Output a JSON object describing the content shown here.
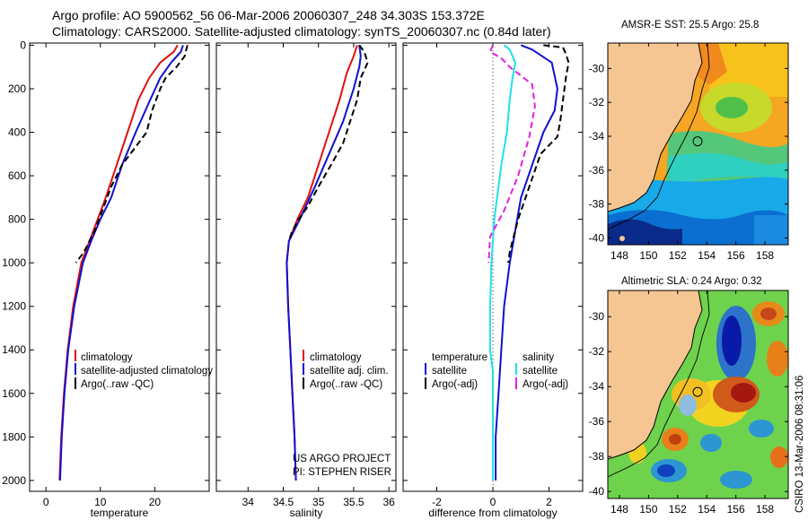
{
  "header": {
    "title_line1": "Argo profile: AO 5900562_56 06-Mar-2006 20060307_248 34.303S 153.372E",
    "title_line2": "Climatology: CARS2000. Satellite-adjusted climatology: synTS_20060307.nc (0.84d later)"
  },
  "colors": {
    "climatology": "#e01010",
    "satellite": "#1010d0",
    "argo": "#000000",
    "salinity_sat": "#20e0e8",
    "salinity_argo": "#e020e0",
    "land": "#f5c592"
  },
  "footer": {
    "project": "US ARGO PROJECT",
    "pi": "PI: STEPHEN RISER",
    "stamp": "CSIRO 13-Mar-2006 08:31:06"
  },
  "chart_data": [
    {
      "type": "line",
      "panel": "temperature",
      "xlabel": "temperature",
      "ylabel": "",
      "xlim": [
        -3,
        30
      ],
      "ylim": [
        2050,
        -10
      ],
      "xticks": [
        0,
        10,
        20
      ],
      "yticks": [
        0,
        200,
        400,
        600,
        800,
        1000,
        1200,
        1400,
        1600,
        1800,
        2000
      ],
      "legend": [
        "climatology",
        "satellite-adjusted climatology",
        "Argo(..raw -QC)"
      ],
      "legend_visible": [
        "climatology",
        "satellite-adjusted climatology",
        "Argo(..raw -QC)"
      ],
      "series": [
        {
          "name": "climatology",
          "style": "solid",
          "color": "#e01010",
          "points": [
            [
              24.2,
              0
            ],
            [
              23.5,
              30
            ],
            [
              21,
              80
            ],
            [
              19,
              150
            ],
            [
              17,
              250
            ],
            [
              15,
              400
            ],
            [
              13,
              550
            ],
            [
              11,
              700
            ],
            [
              9.5,
              800
            ],
            [
              8,
              900
            ],
            [
              6.5,
              1000
            ],
            [
              5,
              1200
            ],
            [
              4,
              1400
            ],
            [
              3.3,
              1600
            ],
            [
              2.8,
              1800
            ],
            [
              2.5,
              2000
            ]
          ]
        },
        {
          "name": "satellite-adjusted climatology",
          "style": "solid",
          "color": "#1010d0",
          "points": [
            [
              25.2,
              0
            ],
            [
              24.8,
              30
            ],
            [
              23,
              80
            ],
            [
              21,
              150
            ],
            [
              19,
              260
            ],
            [
              16.5,
              400
            ],
            [
              14,
              550
            ],
            [
              12,
              700
            ],
            [
              10,
              800
            ],
            [
              8.3,
              900
            ],
            [
              6.8,
              1000
            ],
            [
              5.2,
              1200
            ],
            [
              4.1,
              1400
            ],
            [
              3.4,
              1600
            ],
            [
              2.9,
              1800
            ],
            [
              2.6,
              2000
            ]
          ]
        },
        {
          "name": "Argo(..raw -QC)",
          "style": "dashed",
          "color": "#000000",
          "points": [
            [
              26,
              0
            ],
            [
              25.8,
              20
            ],
            [
              25.5,
              50
            ],
            [
              24,
              100
            ],
            [
              22,
              150
            ],
            [
              21,
              200
            ],
            [
              19.5,
              300
            ],
            [
              18.5,
              400
            ],
            [
              17,
              450
            ],
            [
              14,
              550
            ],
            [
              12,
              650
            ],
            [
              10.5,
              750
            ],
            [
              9,
              850
            ],
            [
              7,
              950
            ],
            [
              5.5,
              1000
            ]
          ]
        }
      ]
    },
    {
      "type": "line",
      "panel": "salinity",
      "xlabel": "salinity",
      "ylabel": "",
      "xlim": [
        33.55,
        36.1
      ],
      "ylim": [
        2050,
        -10
      ],
      "xticks": [
        34,
        34.5,
        35,
        35.5,
        36
      ],
      "legend": [
        "climatology",
        "satellite adj. clim.",
        "Argo(..raw -QC)"
      ],
      "series": [
        {
          "name": "climatology",
          "style": "solid",
          "color": "#e01010",
          "points": [
            [
              35.55,
              0
            ],
            [
              35.5,
              50
            ],
            [
              35.4,
              130
            ],
            [
              35.3,
              250
            ],
            [
              35.15,
              400
            ],
            [
              35.0,
              550
            ],
            [
              34.85,
              700
            ],
            [
              34.7,
              800
            ],
            [
              34.58,
              900
            ],
            [
              34.55,
              1000
            ],
            [
              34.57,
              1200
            ],
            [
              34.6,
              1400
            ],
            [
              34.63,
              1600
            ],
            [
              34.66,
              1800
            ],
            [
              34.68,
              2000
            ]
          ]
        },
        {
          "name": "satellite adj. clim.",
          "style": "solid",
          "color": "#1010d0",
          "points": [
            [
              35.58,
              0
            ],
            [
              35.6,
              50
            ],
            [
              35.58,
              100
            ],
            [
              35.5,
              200
            ],
            [
              35.35,
              350
            ],
            [
              35.15,
              500
            ],
            [
              34.95,
              650
            ],
            [
              34.75,
              790
            ],
            [
              34.58,
              900
            ],
            [
              34.55,
              1000
            ],
            [
              34.57,
              1200
            ],
            [
              34.6,
              1400
            ],
            [
              34.63,
              1600
            ],
            [
              34.66,
              1800
            ],
            [
              34.68,
              2000
            ]
          ]
        },
        {
          "name": "Argo(..raw -QC)",
          "style": "dashed",
          "color": "#000000",
          "points": [
            [
              35.58,
              0
            ],
            [
              35.65,
              30
            ],
            [
              35.7,
              80
            ],
            [
              35.6,
              150
            ],
            [
              35.55,
              250
            ],
            [
              35.45,
              350
            ],
            [
              35.35,
              450
            ],
            [
              35.18,
              550
            ],
            [
              35.0,
              650
            ],
            [
              34.85,
              740
            ],
            [
              34.72,
              800
            ],
            [
              34.62,
              860
            ],
            [
              34.58,
              900
            ]
          ]
        }
      ]
    },
    {
      "type": "line",
      "panel": "difference",
      "xlabel": "difference from climatology",
      "ylabel": "",
      "xlim": [
        -3.2,
        3.2
      ],
      "ylim": [
        2050,
        -10
      ],
      "xticks": [
        -2,
        0,
        2
      ],
      "legend_titles": [
        "temperature",
        "salinity"
      ],
      "legend": [
        "satellite",
        "Argo(-adj)",
        "satellite",
        "Argo(-adj)"
      ],
      "series": [
        {
          "name": "temperature satellite",
          "style": "solid",
          "color": "#1010d0",
          "points": [
            [
              1.0,
              0
            ],
            [
              1.4,
              20
            ],
            [
              2.1,
              80
            ],
            [
              2.3,
              200
            ],
            [
              2.2,
              300
            ],
            [
              1.8,
              400
            ],
            [
              1.4,
              550
            ],
            [
              1.0,
              700
            ],
            [
              0.8,
              850
            ],
            [
              0.6,
              1000
            ],
            [
              0.4,
              1200
            ],
            [
              0.3,
              1400
            ],
            [
              0.2,
              1600
            ],
            [
              0.1,
              1800
            ],
            [
              0.1,
              2000
            ]
          ]
        },
        {
          "name": "temperature Argo(-adj)",
          "style": "dashed",
          "color": "#000000",
          "points": [
            [
              1.8,
              0
            ],
            [
              2.5,
              10
            ],
            [
              2.6,
              40
            ],
            [
              2.7,
              80
            ],
            [
              2.6,
              150
            ],
            [
              2.5,
              250
            ],
            [
              2.4,
              350
            ],
            [
              2.3,
              420
            ],
            [
              1.7,
              500
            ],
            [
              1.3,
              650
            ],
            [
              0.9,
              800
            ],
            [
              0.6,
              950
            ],
            [
              0.55,
              1000
            ]
          ]
        },
        {
          "name": "salinity satellite",
          "style": "solid",
          "color": "#20e0e8",
          "points": [
            [
              0.4,
              0
            ],
            [
              0.6,
              20
            ],
            [
              0.8,
              80
            ],
            [
              0.7,
              150
            ],
            [
              0.6,
              250
            ],
            [
              0.5,
              400
            ],
            [
              0.3,
              550
            ],
            [
              0.15,
              700
            ],
            [
              0.05,
              800
            ],
            [
              0,
              900
            ],
            [
              -0.05,
              1000
            ],
            [
              -0.1,
              1200
            ],
            [
              -0.1,
              1400
            ],
            [
              0,
              1500
            ],
            [
              0,
              1600
            ],
            [
              0,
              1800
            ],
            [
              0,
              2000
            ]
          ]
        },
        {
          "name": "salinity Argo(-adj)",
          "style": "dashed",
          "color": "#e020e0",
          "points": [
            [
              0,
              0
            ],
            [
              -0.1,
              30
            ],
            [
              0.3,
              60
            ],
            [
              0.6,
              100
            ],
            [
              1.4,
              180
            ],
            [
              1.5,
              280
            ],
            [
              1.3,
              420
            ],
            [
              0.9,
              600
            ],
            [
              0.4,
              760
            ],
            [
              -0.1,
              880
            ],
            [
              -0.15,
              1000
            ]
          ]
        }
      ]
    },
    {
      "type": "heatmap",
      "panel": "map-sst",
      "title": "AMSR-E SST: 25.5 Argo: 25.8",
      "xticks": [
        148,
        150,
        152,
        154,
        156,
        158
      ],
      "yticks": [
        -30,
        -32,
        -34,
        -36,
        -38,
        -40
      ],
      "xlim": [
        147.2,
        159.6
      ],
      "ylim": [
        -40.4,
        -28.5
      ],
      "argo_position": [
        153.37,
        -34.3
      ]
    },
    {
      "type": "heatmap",
      "panel": "map-sla",
      "title": "Altimetric SLA: 0.24 Argo: 0.32",
      "xticks": [
        148,
        150,
        152,
        154,
        156,
        158
      ],
      "yticks": [
        -30,
        -32,
        -34,
        -36,
        -38,
        -40
      ],
      "xlim": [
        147.2,
        159.6
      ],
      "ylim": [
        -40.4,
        -28.5
      ],
      "argo_position": [
        153.37,
        -34.3
      ]
    }
  ]
}
